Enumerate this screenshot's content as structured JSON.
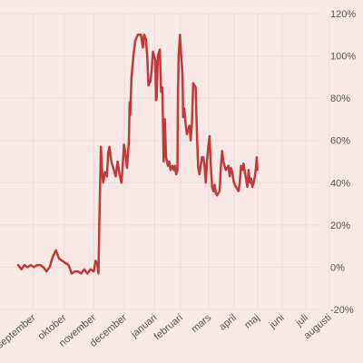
{
  "colors": {
    "background": "#f8e9e6",
    "grid": "#ecdcd6",
    "line": "#c0393b",
    "text": "#555555"
  },
  "chart_data": {
    "type": "line",
    "title": "",
    "xlabel": "",
    "ylabel": "",
    "ylim": [
      -20,
      120
    ],
    "y_ticks": [
      -20,
      0,
      20,
      40,
      60,
      80,
      100,
      120
    ],
    "y_tick_labels": [
      "-20%",
      "0%",
      "20%",
      "40%",
      "60%",
      "80%",
      "100%",
      "120%"
    ],
    "y_axis_position": "right",
    "x_range": [
      0,
      48
    ],
    "x_ticks": [
      {
        "x": 2.4,
        "label": "september"
      },
      {
        "x": 7.3,
        "label": "oktober"
      },
      {
        "x": 12.0,
        "label": "november"
      },
      {
        "x": 16.9,
        "label": "december"
      },
      {
        "x": 21.7,
        "label": "januari"
      },
      {
        "x": 25.8,
        "label": "februari"
      },
      {
        "x": 30.3,
        "label": "mars"
      },
      {
        "x": 34.3,
        "label": "april"
      },
      {
        "x": 38.0,
        "label": "maj"
      },
      {
        "x": 41.9,
        "label": "juni"
      },
      {
        "x": 45.7,
        "label": "juli"
      },
      {
        "x": 49.4,
        "label": "augusti"
      }
    ],
    "grid": true,
    "series": [
      {
        "values": [
          [
            0,
            1
          ],
          [
            0.5,
            -1
          ],
          [
            1,
            1
          ],
          [
            1.5,
            0
          ],
          [
            2,
            1
          ],
          [
            2.5,
            0
          ],
          [
            3,
            1
          ],
          [
            3.5,
            1
          ],
          [
            4,
            0
          ],
          [
            4.5,
            -2
          ],
          [
            5,
            0
          ],
          [
            5.5,
            5
          ],
          [
            6,
            8
          ],
          [
            6.5,
            4
          ],
          [
            7,
            3
          ],
          [
            7.5,
            2
          ],
          [
            8,
            1
          ],
          [
            8.5,
            -3
          ],
          [
            9,
            -2
          ],
          [
            9.5,
            -2
          ],
          [
            10,
            -3
          ],
          [
            10.5,
            -1
          ],
          [
            11,
            -3
          ],
          [
            11.5,
            -1
          ],
          [
            12,
            -2
          ],
          [
            12.3,
            3
          ],
          [
            12.6,
            1
          ],
          [
            12.75,
            -3
          ],
          [
            12.9,
            22
          ],
          [
            13.0,
            36
          ],
          [
            13.15,
            57
          ],
          [
            13.35,
            45
          ],
          [
            13.5,
            40
          ],
          [
            13.8,
            45
          ],
          [
            14.1,
            43
          ],
          [
            14.3,
            54
          ],
          [
            14.5,
            57
          ],
          [
            14.8,
            50
          ],
          [
            15.2,
            46
          ],
          [
            15.5,
            43
          ],
          [
            15.8,
            50
          ],
          [
            16.1,
            44
          ],
          [
            16.4,
            40
          ],
          [
            16.6,
            48
          ],
          [
            16.8,
            58
          ],
          [
            17.0,
            55
          ],
          [
            17.3,
            47
          ],
          [
            17.6,
            60
          ],
          [
            17.7,
            78
          ],
          [
            17.8,
            72
          ],
          [
            18.0,
            90
          ],
          [
            18.3,
            100
          ],
          [
            18.6,
            107
          ],
          [
            19.0,
            110
          ],
          [
            19.5,
            110
          ],
          [
            19.8,
            104
          ],
          [
            20.0,
            110
          ],
          [
            20.3,
            108
          ],
          [
            20.5,
            100
          ],
          [
            20.7,
            86
          ],
          [
            21.0,
            88
          ],
          [
            21.2,
            93
          ],
          [
            21.4,
            102
          ],
          [
            21.6,
            100
          ],
          [
            21.8,
            98
          ],
          [
            21.9,
            79
          ],
          [
            22.0,
            80
          ],
          [
            22.2,
            100
          ],
          [
            22.5,
            103
          ],
          [
            22.7,
            83
          ],
          [
            22.9,
            85
          ],
          [
            23.1,
            50
          ],
          [
            23.3,
            70
          ],
          [
            23.5,
            52
          ],
          [
            23.8,
            48
          ],
          [
            24.0,
            50
          ],
          [
            24.2,
            46
          ],
          [
            24.5,
            48
          ],
          [
            24.7,
            46
          ],
          [
            24.9,
            48
          ],
          [
            25.1,
            44
          ],
          [
            25.3,
            46
          ],
          [
            25.4,
            85
          ],
          [
            25.5,
            100
          ],
          [
            25.7,
            110
          ],
          [
            25.9,
            100
          ],
          [
            26.1,
            91
          ],
          [
            26.2,
            71
          ],
          [
            26.4,
            75
          ],
          [
            26.6,
            68
          ],
          [
            26.8,
            63
          ],
          [
            27.0,
            65
          ],
          [
            27.2,
            67
          ],
          [
            27.4,
            60
          ],
          [
            27.6,
            68
          ],
          [
            27.8,
            87
          ],
          [
            28.0,
            86
          ],
          [
            28.2,
            85
          ],
          [
            28.4,
            63
          ],
          [
            28.6,
            47
          ],
          [
            28.8,
            44
          ],
          [
            29.0,
            48
          ],
          [
            29.2,
            52
          ],
          [
            29.4,
            52
          ],
          [
            29.6,
            48
          ],
          [
            29.8,
            40
          ],
          [
            30.0,
            50
          ],
          [
            30.2,
            57
          ],
          [
            30.4,
            62
          ],
          [
            30.6,
            48
          ],
          [
            30.8,
            38
          ],
          [
            31.0,
            36
          ],
          [
            31.2,
            39
          ],
          [
            31.4,
            35
          ],
          [
            31.6,
            34
          ],
          [
            31.8,
            35
          ],
          [
            32.0,
            36
          ],
          [
            32.2,
            48
          ],
          [
            32.4,
            55
          ],
          [
            32.6,
            50
          ],
          [
            32.8,
            48
          ],
          [
            33.0,
            46
          ],
          [
            33.2,
            47
          ],
          [
            33.4,
            48
          ],
          [
            33.6,
            43
          ],
          [
            33.8,
            47
          ],
          [
            34.0,
            45
          ],
          [
            34.2,
            41
          ],
          [
            34.4,
            39
          ],
          [
            34.6,
            38
          ],
          [
            34.8,
            37
          ],
          [
            35.0,
            36
          ],
          [
            35.2,
            40
          ],
          [
            35.4,
            48
          ],
          [
            35.6,
            46
          ],
          [
            35.8,
            49
          ],
          [
            36.0,
            45
          ],
          [
            36.2,
            42
          ],
          [
            36.4,
            38
          ],
          [
            36.6,
            46
          ],
          [
            36.8,
            40
          ],
          [
            37.0,
            42
          ],
          [
            37.2,
            38
          ],
          [
            37.4,
            40
          ],
          [
            37.6,
            43
          ],
          [
            37.8,
            48
          ],
          [
            37.9,
            52
          ],
          [
            38.0,
            46
          ]
        ]
      }
    ]
  }
}
